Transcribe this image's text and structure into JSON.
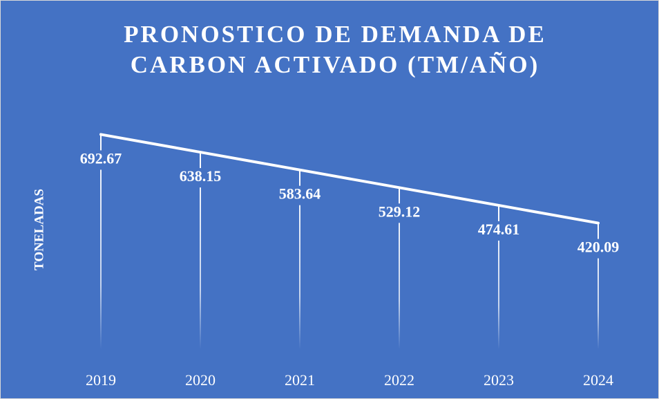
{
  "chart_data": {
    "type": "line",
    "title": "PRONOSTICO DE DEMANDA DE CARBON ACTIVADO (TM/AÑO)",
    "y_label": "TONELADAS",
    "categories": [
      "2019",
      "2020",
      "2021",
      "2022",
      "2023",
      "2024"
    ],
    "values": [
      692.67,
      638.15,
      583.64,
      529.12,
      474.61,
      420.09
    ],
    "color": "#ffffff",
    "background": "#4472c4",
    "drop_lines": true,
    "data_labels": true,
    "ylim": [
      0,
      800
    ]
  }
}
